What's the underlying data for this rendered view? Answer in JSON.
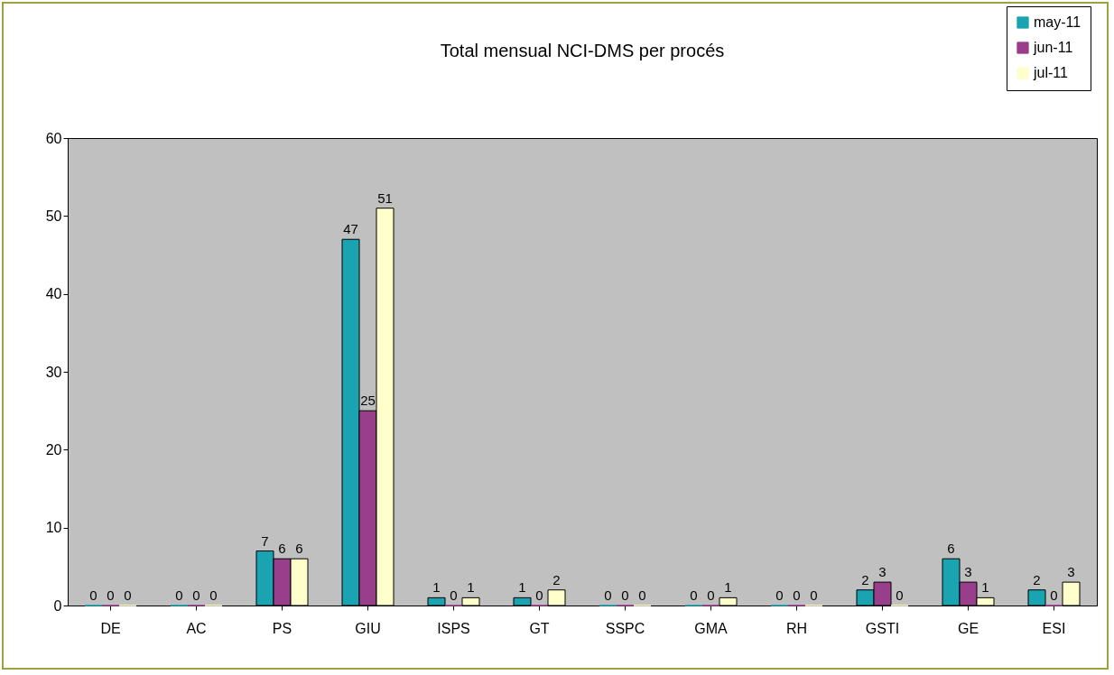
{
  "chart_data": {
    "type": "bar",
    "title": "Total mensual NCI-DMS per procés",
    "categories": [
      "DE",
      "AC",
      "PS",
      "GIU",
      "ISPS",
      "GT",
      "SSPC",
      "GMA",
      "RH",
      "GSTI",
      "GE",
      "ESI"
    ],
    "series": [
      {
        "name": "may-11",
        "color": "#1aa3b0",
        "values": [
          0,
          0,
          7,
          47,
          1,
          1,
          0,
          0,
          0,
          2,
          6,
          2
        ]
      },
      {
        "name": "jun-11",
        "color": "#993e8a",
        "values": [
          0,
          0,
          6,
          25,
          0,
          0,
          0,
          0,
          0,
          3,
          3,
          0
        ]
      },
      {
        "name": "jul-11",
        "color": "#ffffcc",
        "values": [
          0,
          0,
          6,
          51,
          1,
          2,
          0,
          1,
          0,
          0,
          1,
          3
        ]
      }
    ],
    "ylim": [
      0,
      60
    ],
    "yticks": [
      0,
      10,
      20,
      30,
      40,
      50,
      60
    ],
    "data_labels": true,
    "legend": "top right",
    "grid": false
  }
}
